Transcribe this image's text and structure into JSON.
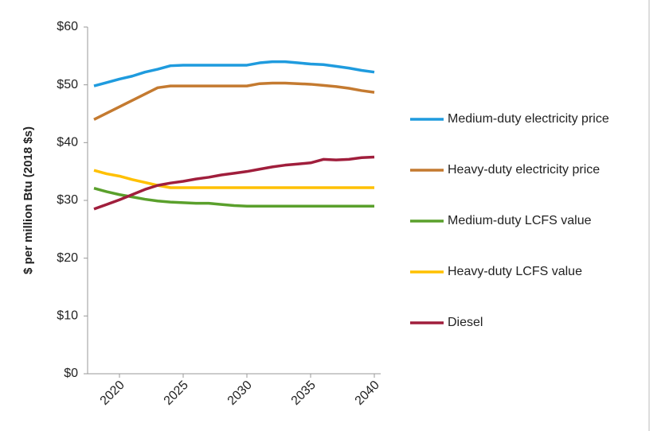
{
  "chart_data": {
    "type": "line",
    "ylabel": "$ per million Btu (2018 $s)",
    "x": [
      2018,
      2019,
      2020,
      2021,
      2022,
      2023,
      2024,
      2025,
      2026,
      2027,
      2028,
      2029,
      2030,
      2031,
      2032,
      2033,
      2034,
      2035,
      2036,
      2037,
      2038,
      2039,
      2040
    ],
    "xlim": [
      2017.5,
      2040.5
    ],
    "xticks": [
      2020,
      2025,
      2030,
      2035,
      2040
    ],
    "ylim": [
      0,
      60
    ],
    "yticks": [
      {
        "value": 0,
        "label": "$0"
      },
      {
        "value": 10,
        "label": "$10"
      },
      {
        "value": 20,
        "label": "$20"
      },
      {
        "value": 30,
        "label": "$30"
      },
      {
        "value": 40,
        "label": "$40"
      },
      {
        "value": 50,
        "label": "$50"
      },
      {
        "value": 60,
        "label": "$60"
      }
    ],
    "grid": false,
    "legend": "right",
    "series": [
      {
        "name": "Medium-duty electricity price",
        "color": "#1f9bde",
        "values": [
          49.8,
          50.4,
          51,
          51.5,
          52.2,
          52.7,
          53.3,
          53.4,
          53.4,
          53.4,
          53.4,
          53.4,
          53.4,
          53.8,
          54,
          54,
          53.8,
          53.6,
          53.5,
          53.2,
          52.9,
          52.5,
          52.2
        ]
      },
      {
        "name": "Heavy-duty electricity price",
        "color": "#c47a30",
        "values": [
          44,
          45.1,
          46.2,
          47.3,
          48.4,
          49.5,
          49.8,
          49.8,
          49.8,
          49.8,
          49.8,
          49.8,
          49.8,
          50.2,
          50.3,
          50.3,
          50.2,
          50.1,
          49.9,
          49.7,
          49.4,
          49,
          48.7
        ]
      },
      {
        "name": "Medium-duty LCFS value",
        "color": "#5aa02c",
        "values": [
          32.1,
          31.5,
          31,
          30.6,
          30.2,
          29.9,
          29.7,
          29.6,
          29.5,
          29.5,
          29.3,
          29.1,
          29,
          29,
          29,
          29,
          29,
          29,
          29,
          29,
          29,
          29,
          29
        ]
      },
      {
        "name": "Heavy-duty LCFS value",
        "color": "#ffc000",
        "values": [
          35.2,
          34.6,
          34.2,
          33.6,
          33.1,
          32.6,
          32.2,
          32.2,
          32.2,
          32.2,
          32.2,
          32.2,
          32.2,
          32.2,
          32.2,
          32.2,
          32.2,
          32.2,
          32.2,
          32.2,
          32.2,
          32.2,
          32.2
        ]
      },
      {
        "name": "Diesel",
        "color": "#a01e3c",
        "values": [
          28.5,
          29.3,
          30.1,
          31,
          31.9,
          32.6,
          33,
          33.3,
          33.7,
          34,
          34.4,
          34.7,
          35,
          35.4,
          35.8,
          36.1,
          36.3,
          36.5,
          37.1,
          37,
          37.1,
          37.4,
          37.5
        ]
      }
    ]
  }
}
